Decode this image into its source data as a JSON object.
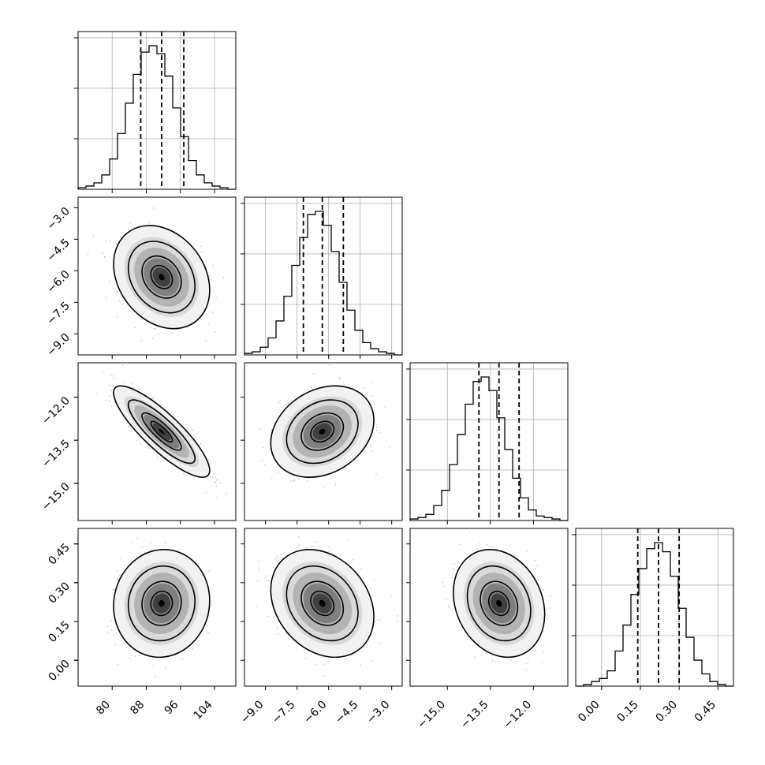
{
  "chart_data": {
    "type": "corner",
    "title": "",
    "parameters": [
      {
        "xlim": [
          72,
          109
        ],
        "ticks": [
          80,
          88,
          96,
          104
        ],
        "tick_labels": [
          "80",
          "88",
          "96",
          "104"
        ],
        "quantiles": [
          86.7,
          91.6,
          96.8
        ]
      },
      {
        "xlim": [
          -10,
          -2.5
        ],
        "ticks": [
          -9.0,
          -7.5,
          -6.0,
          -4.5,
          -3.0
        ],
        "tick_labels": [
          "−9.0",
          "−7.5",
          "−6.0",
          "−4.5",
          "−3.0"
        ],
        "quantiles": [
          -7.2,
          -6.3,
          -5.3
        ]
      },
      {
        "xlim": [
          -16.3,
          -10.8
        ],
        "ticks": [
          -15.0,
          -13.5,
          -12.0
        ],
        "tick_labels": [
          "−15.0",
          "−13.5",
          "−12.0"
        ],
        "quantiles": [
          -13.9,
          -13.2,
          -12.5
        ]
      },
      {
        "xlim": [
          -0.1,
          0.51
        ],
        "ticks": [
          0.0,
          0.15,
          0.3,
          0.45
        ],
        "tick_labels": [
          "0.00",
          "0.15",
          "0.30",
          "0.45"
        ],
        "quantiles": [
          0.14,
          0.22,
          0.3
        ]
      }
    ],
    "histograms": [
      {
        "counts": [
          1,
          2,
          4,
          9,
          19,
          35,
          54,
          72,
          86,
          90,
          85,
          71,
          51,
          33,
          18,
          9,
          4,
          2,
          1,
          0
        ]
      },
      {
        "counts": [
          1,
          2,
          5,
          11,
          22,
          38,
          58,
          76,
          91,
          93,
          84,
          67,
          47,
          29,
          16,
          8,
          4,
          2,
          1,
          0
        ]
      },
      {
        "counts": [
          1,
          2,
          4,
          10,
          20,
          37,
          57,
          77,
          92,
          95,
          86,
          68,
          47,
          28,
          15,
          7,
          3,
          2,
          1,
          0
        ]
      },
      {
        "counts": [
          0,
          1,
          3,
          5,
          10,
          23,
          40,
          60,
          77,
          90,
          94,
          88,
          72,
          51,
          32,
          17,
          8,
          3,
          1,
          0
        ]
      }
    ],
    "pairs": [
      {
        "x": 0,
        "y": 1,
        "corr": -0.25
      },
      {
        "x": 0,
        "y": 2,
        "corr": -0.85
      },
      {
        "x": 1,
        "y": 2,
        "corr": 0.25
      },
      {
        "x": 0,
        "y": 3,
        "corr": 0.05
      },
      {
        "x": 1,
        "y": 3,
        "corr": -0.25
      },
      {
        "x": 2,
        "y": 3,
        "corr": -0.2
      }
    ],
    "means": [
      91.6,
      -6.3,
      -13.2,
      0.22
    ],
    "sigmas": [
      4.6,
      1.0,
      0.65,
      0.085
    ],
    "grid": true,
    "legend": "none"
  }
}
